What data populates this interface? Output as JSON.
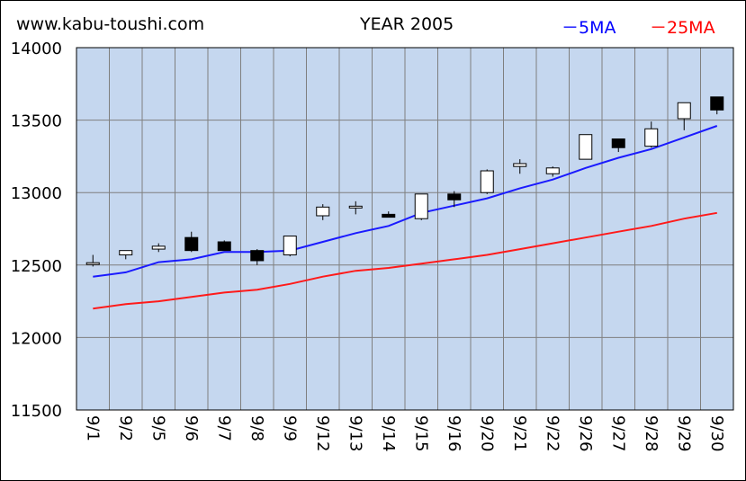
{
  "header": {
    "site": "www.kabu-toushi.com",
    "title": "YEAR 2005",
    "legend_ma5": "－5MA",
    "legend_ma25": "－25MA"
  },
  "colors": {
    "plot_bg": "#c5d7ef",
    "grid": "#7f7f7f",
    "ma5": "#1a1aff",
    "ma25": "#ff1a1a",
    "candle_up": "#ffffff",
    "candle_down": "#000000"
  },
  "chart_data": {
    "type": "candlestick",
    "title": "YEAR 2005",
    "xlabel": "",
    "ylabel": "",
    "ylim": [
      11500,
      14000
    ],
    "yticks": [
      11500,
      12000,
      12500,
      13000,
      13500,
      14000
    ],
    "grid": true,
    "legend_position": "top-right",
    "categories": [
      "9/1",
      "9/2",
      "9/5",
      "9/6",
      "9/7",
      "9/8",
      "9/9",
      "9/12",
      "9/13",
      "9/14",
      "9/15",
      "9/16",
      "9/20",
      "9/21",
      "9/22",
      "9/26",
      "9/27",
      "9/28",
      "9/29",
      "9/30"
    ],
    "candles": [
      {
        "open": 12510,
        "high": 12570,
        "low": 12490,
        "close": 12510
      },
      {
        "open": 12570,
        "high": 12600,
        "low": 12540,
        "close": 12600
      },
      {
        "open": 12610,
        "high": 12650,
        "low": 12590,
        "close": 12630
      },
      {
        "open": 12690,
        "high": 12730,
        "low": 12590,
        "close": 12600
      },
      {
        "open": 12660,
        "high": 12670,
        "low": 12600,
        "close": 12600
      },
      {
        "open": 12600,
        "high": 12610,
        "low": 12500,
        "close": 12530
      },
      {
        "open": 12570,
        "high": 12700,
        "low": 12560,
        "close": 12700
      },
      {
        "open": 12840,
        "high": 12920,
        "low": 12810,
        "close": 12900
      },
      {
        "open": 12890,
        "high": 12940,
        "low": 12850,
        "close": 12900
      },
      {
        "open": 12850,
        "high": 12870,
        "low": 12830,
        "close": 12830
      },
      {
        "open": 12820,
        "high": 12990,
        "low": 12810,
        "close": 12990
      },
      {
        "open": 12990,
        "high": 13010,
        "low": 12900,
        "close": 12950
      },
      {
        "open": 13000,
        "high": 13160,
        "low": 12990,
        "close": 13150
      },
      {
        "open": 13180,
        "high": 13230,
        "low": 13130,
        "close": 13200
      },
      {
        "open": 13130,
        "high": 13180,
        "low": 13110,
        "close": 13170
      },
      {
        "open": 13230,
        "high": 13400,
        "low": 13230,
        "close": 13400
      },
      {
        "open": 13370,
        "high": 13370,
        "low": 13280,
        "close": 13310
      },
      {
        "open": 13320,
        "high": 13490,
        "low": 13310,
        "close": 13440
      },
      {
        "open": 13510,
        "high": 13620,
        "low": 13430,
        "close": 13620
      },
      {
        "open": 13660,
        "high": 13660,
        "low": 13540,
        "close": 13570
      }
    ],
    "series": [
      {
        "name": "5MA",
        "color": "#1a1aff",
        "values": [
          12420,
          12450,
          12520,
          12540,
          12590,
          12590,
          12600,
          12660,
          12720,
          12770,
          12860,
          12910,
          12960,
          13030,
          13090,
          13170,
          13240,
          13300,
          13380,
          13460
        ]
      },
      {
        "name": "25MA",
        "color": "#ff1a1a",
        "values": [
          12200,
          12230,
          12250,
          12280,
          12310,
          12330,
          12370,
          12420,
          12460,
          12480,
          12510,
          12540,
          12570,
          12610,
          12650,
          12690,
          12730,
          12770,
          12820,
          12860
        ]
      }
    ]
  }
}
